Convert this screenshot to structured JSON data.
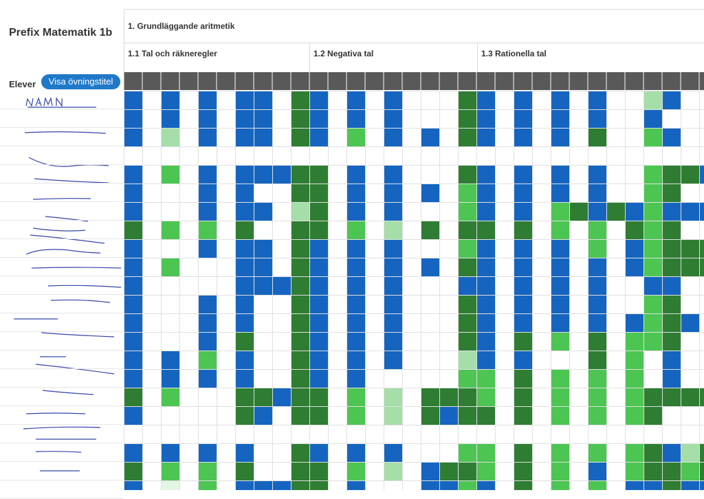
{
  "course": {
    "title": "Prefix Matematik 1b"
  },
  "controls": {
    "students_label": "Elever",
    "toggle_button_label": "Visa övningstitel"
  },
  "chapter": {
    "title": "1. Grundläggande aritmetik"
  },
  "sections": [
    {
      "title": "1.1 Tal och räkneregler"
    },
    {
      "title": "1.2 Negativa tal"
    },
    {
      "title": "1.3 Rationella tal"
    }
  ],
  "colors": {
    "B": "#1565c0",
    "D": "#2e7d32",
    "G": "#4cc552",
    "L": "#a5dea8",
    "P": "#e3f6e3",
    "header": "#595959",
    "grid_line": "#e0e0e0",
    "accent": "#1f78c8"
  },
  "grid": {
    "rows": [
      "B.B.B.BB.DB.B.B...DB.B.B.B..LB...",
      "B.B.B.BB.DB.B.B...DB.B.B.B..B....",
      "B.L.B.BB.DB.G.B.B.DB.B.B.D..GB...",
      ".................................",
      "B.G.B.BBBDD.B.B...DB.B.B.B..GDDB.",
      "B...B.B..DD.B.B.B.GB.B.B.B..GD...",
      "B...B.BB.LD.B.B...GB.B.GDBDBGBBB.",
      "D.G.G.D..DD.G.L.D.DD.D.G.G.DGD...",
      "B...B.BB.DB.B.B...GB.B.B.G.BGDDDD",
      "B.G...BB.DB.B.B.B.DB.B.B.B.BGDDDD",
      "B.....BBBDB.B.B...BB.B.B.B..BB...",
      "B...B.B..DB.B.B...DB.B.B.B..GD...",
      "B...B.B..DB.B.B...DB.B.B.B.BGDB..",
      "B...B.D..DB.B.B...DB.D.G.D.GGD...",
      "B.B.G.B..DB.B.B...LB.B...D.G.B...",
      "B.B.B.B..DB.B.....GG.D.G.G.G.B...",
      "D.G...DDBDD.G.L.DDDG.D.G.G.GDDDDD",
      "B.....DB.DD.G.L.DBDD.D.G.G.GD....",
      ".................................",
      "B.B.B.B..DB.B.B...GG.D.G.G.GDBLD.",
      "D.G.G.D..DD.G.L.BDDG.D.G.B.GDDGD.",
      "B.P.G.BBBDD.B...BBGB.D.G.G.BBDBB."
    ]
  }
}
